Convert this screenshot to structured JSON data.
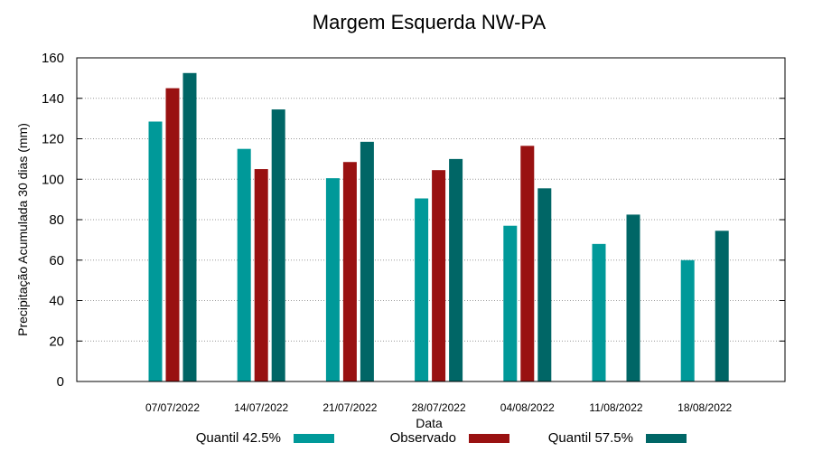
{
  "chart_data": {
    "type": "bar",
    "title": "Margem Esquerda NW-PA",
    "xlabel": "Data",
    "ylabel": "Precipitação Acumulada 30 dias (mm)",
    "ylim": [
      0,
      160
    ],
    "yticks": [
      0,
      20,
      40,
      60,
      80,
      100,
      120,
      140,
      160
    ],
    "grid": true,
    "legend_position": "bottom",
    "categories": [
      "07/07/2022",
      "14/07/2022",
      "21/07/2022",
      "28/07/2022",
      "04/08/2022",
      "11/08/2022",
      "18/08/2022"
    ],
    "series": [
      {
        "name": "Quantil 42.5%",
        "color": "#009999",
        "values": [
          128.5,
          115,
          100.5,
          90.5,
          77,
          68,
          60
        ]
      },
      {
        "name": "Observado",
        "color": "#991111",
        "values": [
          145,
          105,
          108.5,
          104.5,
          116.5,
          null,
          null
        ]
      },
      {
        "name": "Quantil 57.5%",
        "color": "#006666",
        "values": [
          152.5,
          134.5,
          118.5,
          110,
          95.5,
          82.5,
          74.5
        ]
      }
    ]
  }
}
